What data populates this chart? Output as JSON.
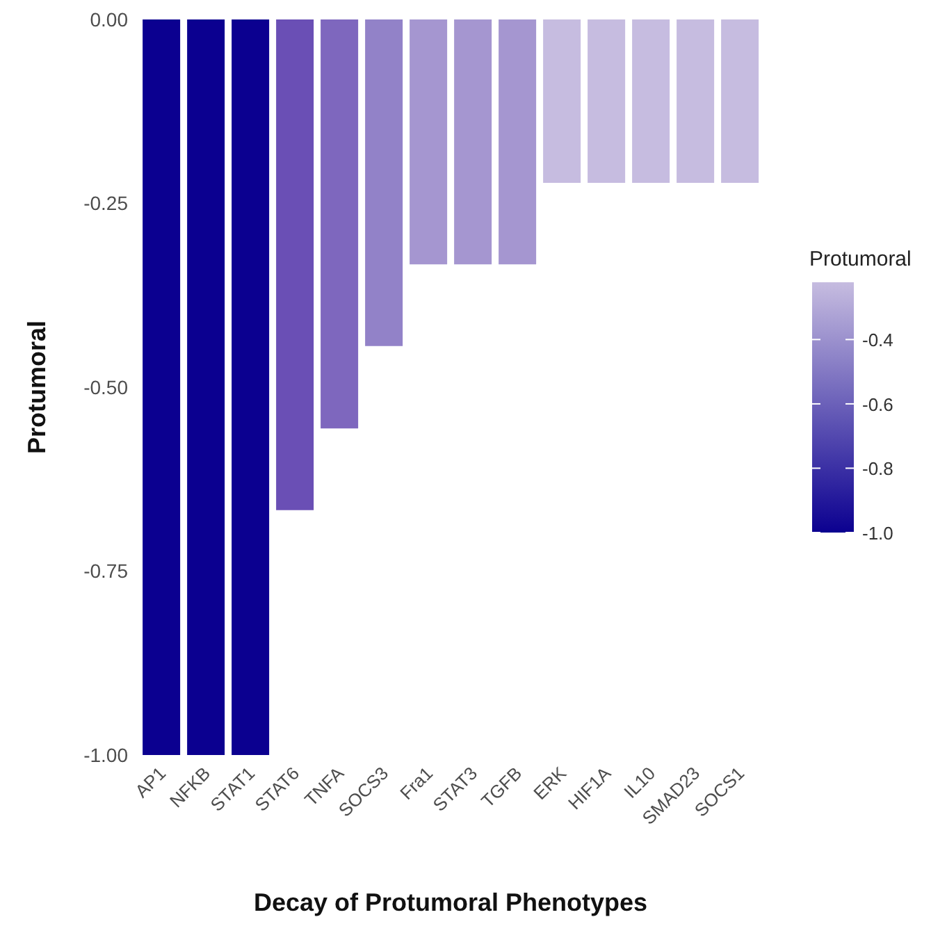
{
  "chart_data": {
    "type": "bar",
    "xlabel": "Decay of Protumoral Phenotypes",
    "ylabel": "Protumoral",
    "clabel": "Protumoral",
    "categories": [
      "AP1",
      "NFKB",
      "STAT1",
      "STAT6",
      "TNFA",
      "SOCS3",
      "Fra1",
      "STAT3",
      "TGFB",
      "ERK",
      "HIF1A",
      "IL10",
      "SMAD23",
      "SOCS1"
    ],
    "values": [
      -1,
      -1,
      -1,
      -0.667,
      -0.556,
      -0.444,
      -0.333,
      -0.333,
      -0.333,
      -0.222,
      -0.222,
      -0.222,
      -0.222,
      -0.222
    ],
    "colors": [
      "#0b0090",
      "#0b0090",
      "#0b0090",
      "#6a4fb5",
      "#7e67be",
      "#9282c8",
      "#a596d0",
      "#a596d0",
      "#a596d0",
      "#c6bce0",
      "#c6bce0",
      "#c6bce0",
      "#c6bce0",
      "#c6bce0"
    ],
    "ylim": [
      -1,
      0
    ],
    "yticks": [
      {
        "value": -1,
        "label": "-1.00"
      },
      {
        "value": -0.75,
        "label": "-0.75"
      },
      {
        "value": -0.5,
        "label": "-0.50"
      },
      {
        "value": -0.25,
        "label": "-0.25"
      },
      {
        "value": 0,
        "label": "0.00"
      }
    ],
    "clim": [
      -1,
      -0.222
    ],
    "cticks": [
      {
        "value": -1,
        "label": "-1.0"
      },
      {
        "value": -0.8,
        "label": "-0.8"
      },
      {
        "value": -0.6,
        "label": "-0.6"
      },
      {
        "value": -0.4,
        "label": "-0.4"
      }
    ],
    "grid": false
  }
}
